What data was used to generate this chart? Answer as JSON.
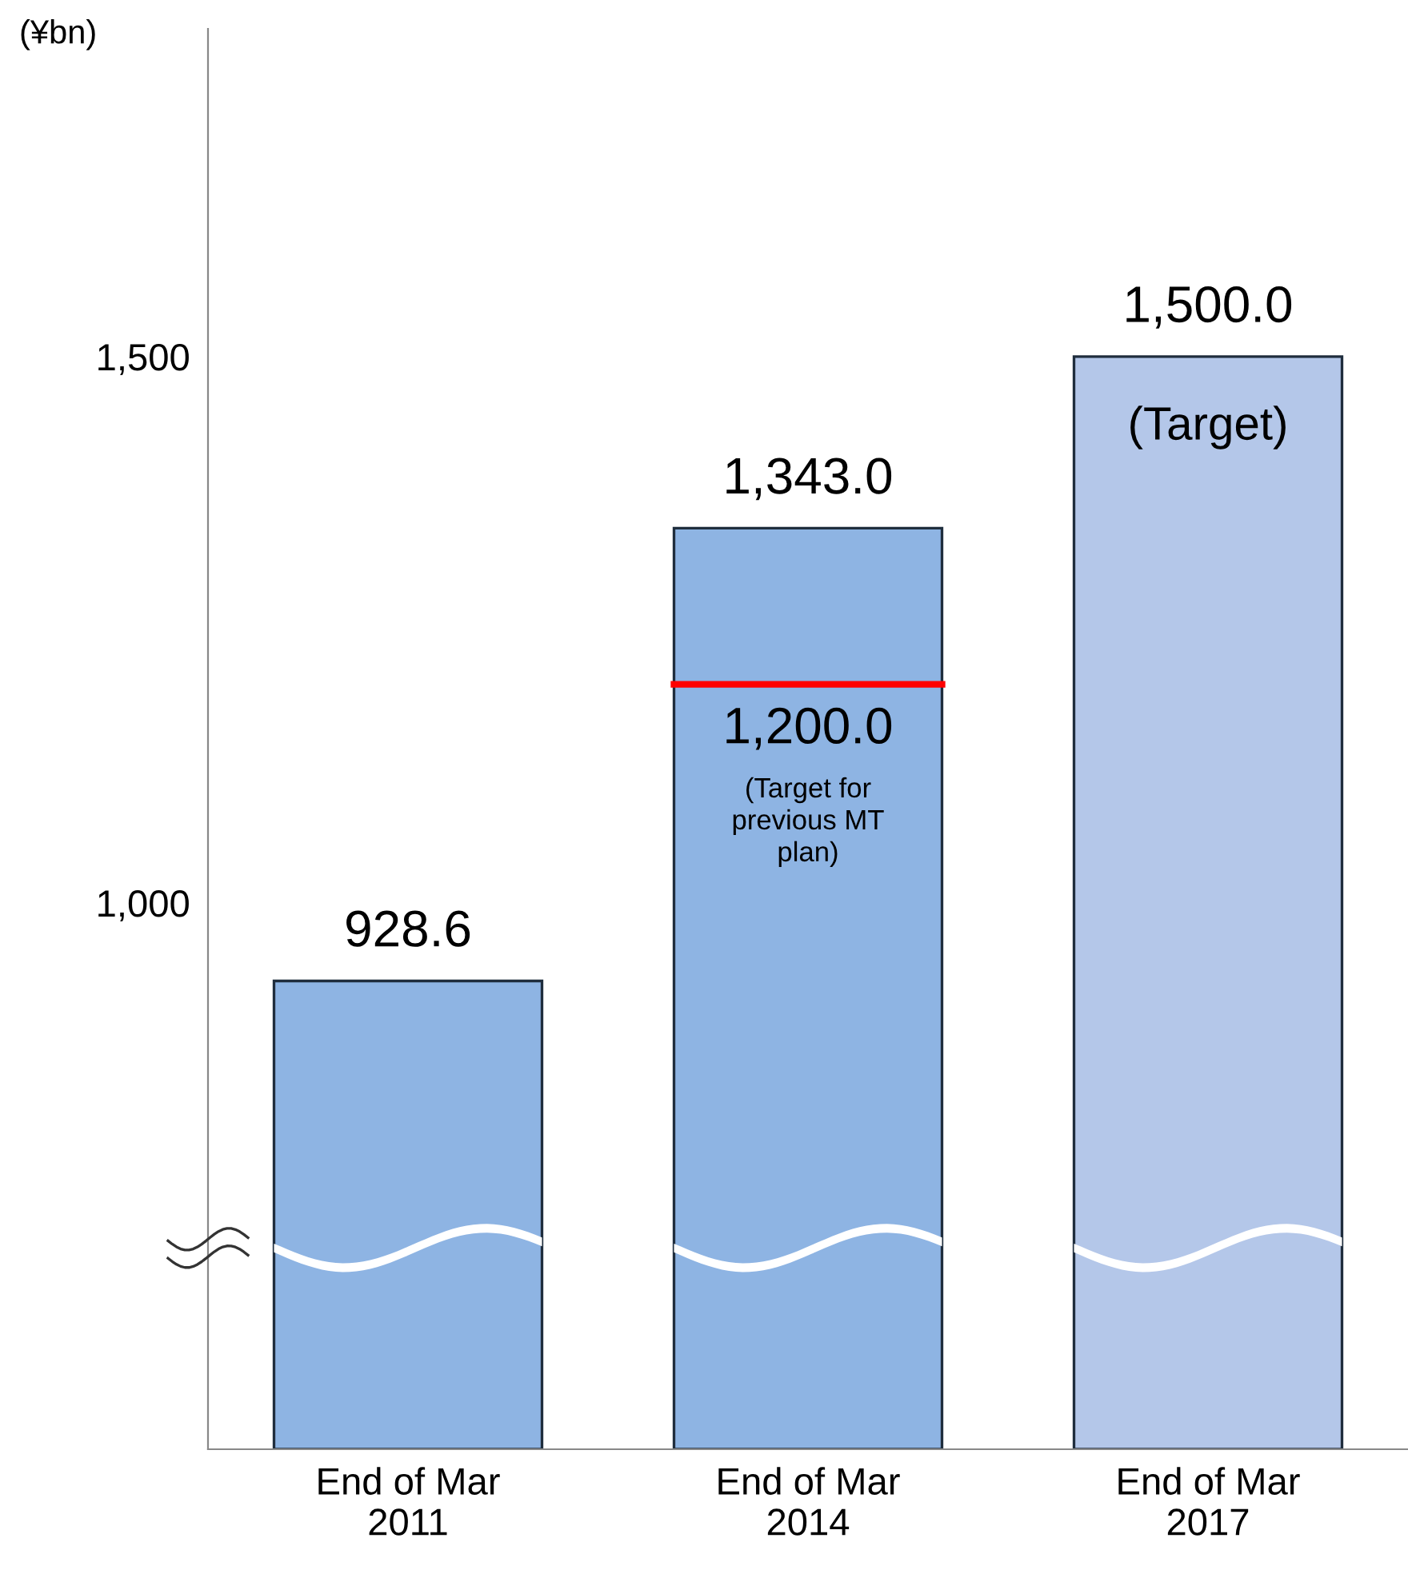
{
  "chart_data": {
    "type": "bar",
    "ylabel": "(¥bn)",
    "categories": [
      "End of Mar\n2011",
      "End of Mar\n2014",
      "End of Mar\n2017"
    ],
    "values": [
      928.6,
      1343.0,
      1500.0
    ],
    "value_labels": [
      "928.6",
      "1,343.0",
      "1,500.0"
    ],
    "colors": [
      "#8eb4e3",
      "#8eb4e3",
      "#b4c7e9"
    ],
    "ylim": [
      500,
      1800
    ],
    "yticks": [
      {
        "value": 1000,
        "label": "1,000"
      },
      {
        "value": 1500,
        "label": "1,500"
      }
    ],
    "ref_lines": [
      {
        "axis": "y",
        "value": 1200,
        "label": "1,200.0",
        "color": "#ff0000"
      }
    ],
    "annotations": [
      "(Target for\nprevious MT\nplan)",
      {
        "text": "(Target)",
        "x": "End of Mar\n2017",
        "y": 1500
      }
    ],
    "grid": false,
    "legend": false
  }
}
